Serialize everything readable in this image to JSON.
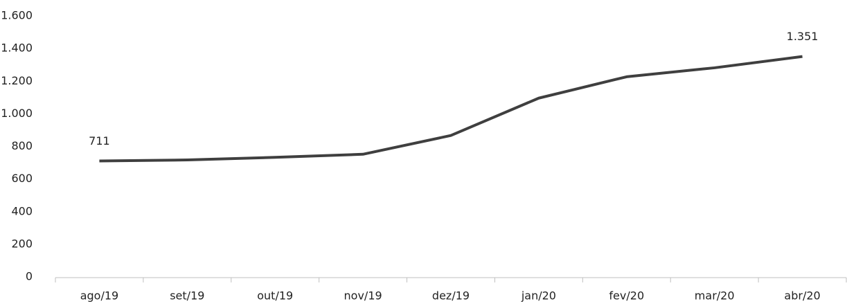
{
  "chart_data": {
    "type": "line",
    "categories": [
      "ago/19",
      "set/19",
      "out/19",
      "nov/19",
      "dez/19",
      "jan/20",
      "fev/20",
      "mar/20",
      "abr/20"
    ],
    "series": [
      {
        "color": "#3f3f3f",
        "values": [
          711,
          717,
          733,
          752,
          867,
          1096,
          1227,
          1282,
          1351
        ],
        "value_labels": [
          "711",
          null,
          null,
          null,
          null,
          null,
          null,
          null,
          "1.351"
        ]
      }
    ],
    "ylim": [
      0,
      1600
    ],
    "yticks": [
      0,
      200,
      400,
      600,
      800,
      {
        "value": 1000,
        "label": "1.000"
      },
      {
        "value": 1200,
        "label": "1.200"
      },
      {
        "value": 1400,
        "label": "1.400"
      },
      {
        "value": 1600,
        "label": "1.600"
      }
    ],
    "grid": false
  }
}
